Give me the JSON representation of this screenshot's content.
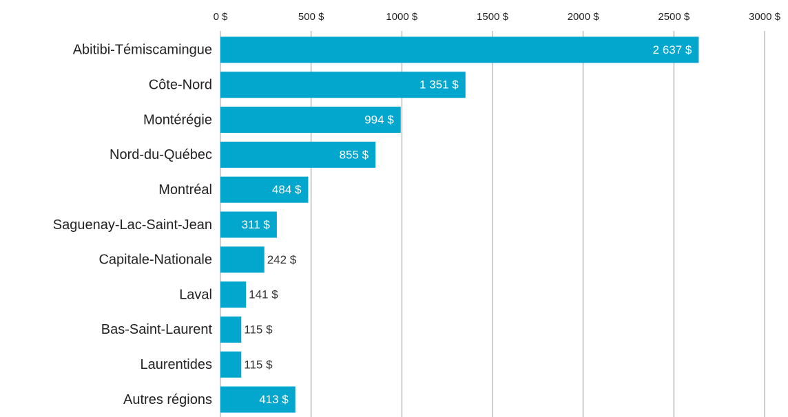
{
  "chart_data": {
    "type": "barh",
    "categories": [
      "Abitibi-Témiscamingue",
      "Côte-Nord",
      "Montérégie",
      "Nord-du-Québec",
      "Montréal",
      "Saguenay-Lac-Saint-Jean",
      "Capitale-Nationale",
      "Laval",
      "Bas-Saint-Laurent",
      "Laurentides",
      "Autres régions"
    ],
    "values": [
      2637,
      1351,
      994,
      855,
      484,
      311,
      242,
      141,
      115,
      115,
      413
    ],
    "value_labels": [
      "2 637 $",
      "1 351 $",
      "994 $",
      "855 $",
      "484 $",
      "311 $",
      "242 $",
      "141 $",
      "115 $",
      "115 $",
      "413 $"
    ],
    "color": "#03a6cd",
    "xlim": [
      0,
      3000
    ],
    "xticks": [
      {
        "value": 0,
        "label": "0 $"
      },
      {
        "value": 500,
        "label": "500 $"
      },
      {
        "value": 1000,
        "label": "1000 $"
      },
      {
        "value": 1500,
        "label": "1500 $"
      },
      {
        "value": 2000,
        "label": "2000 $"
      },
      {
        "value": 2500,
        "label": "2500 $"
      },
      {
        "value": 3000,
        "label": "3000 $"
      }
    ],
    "grid": true
  }
}
